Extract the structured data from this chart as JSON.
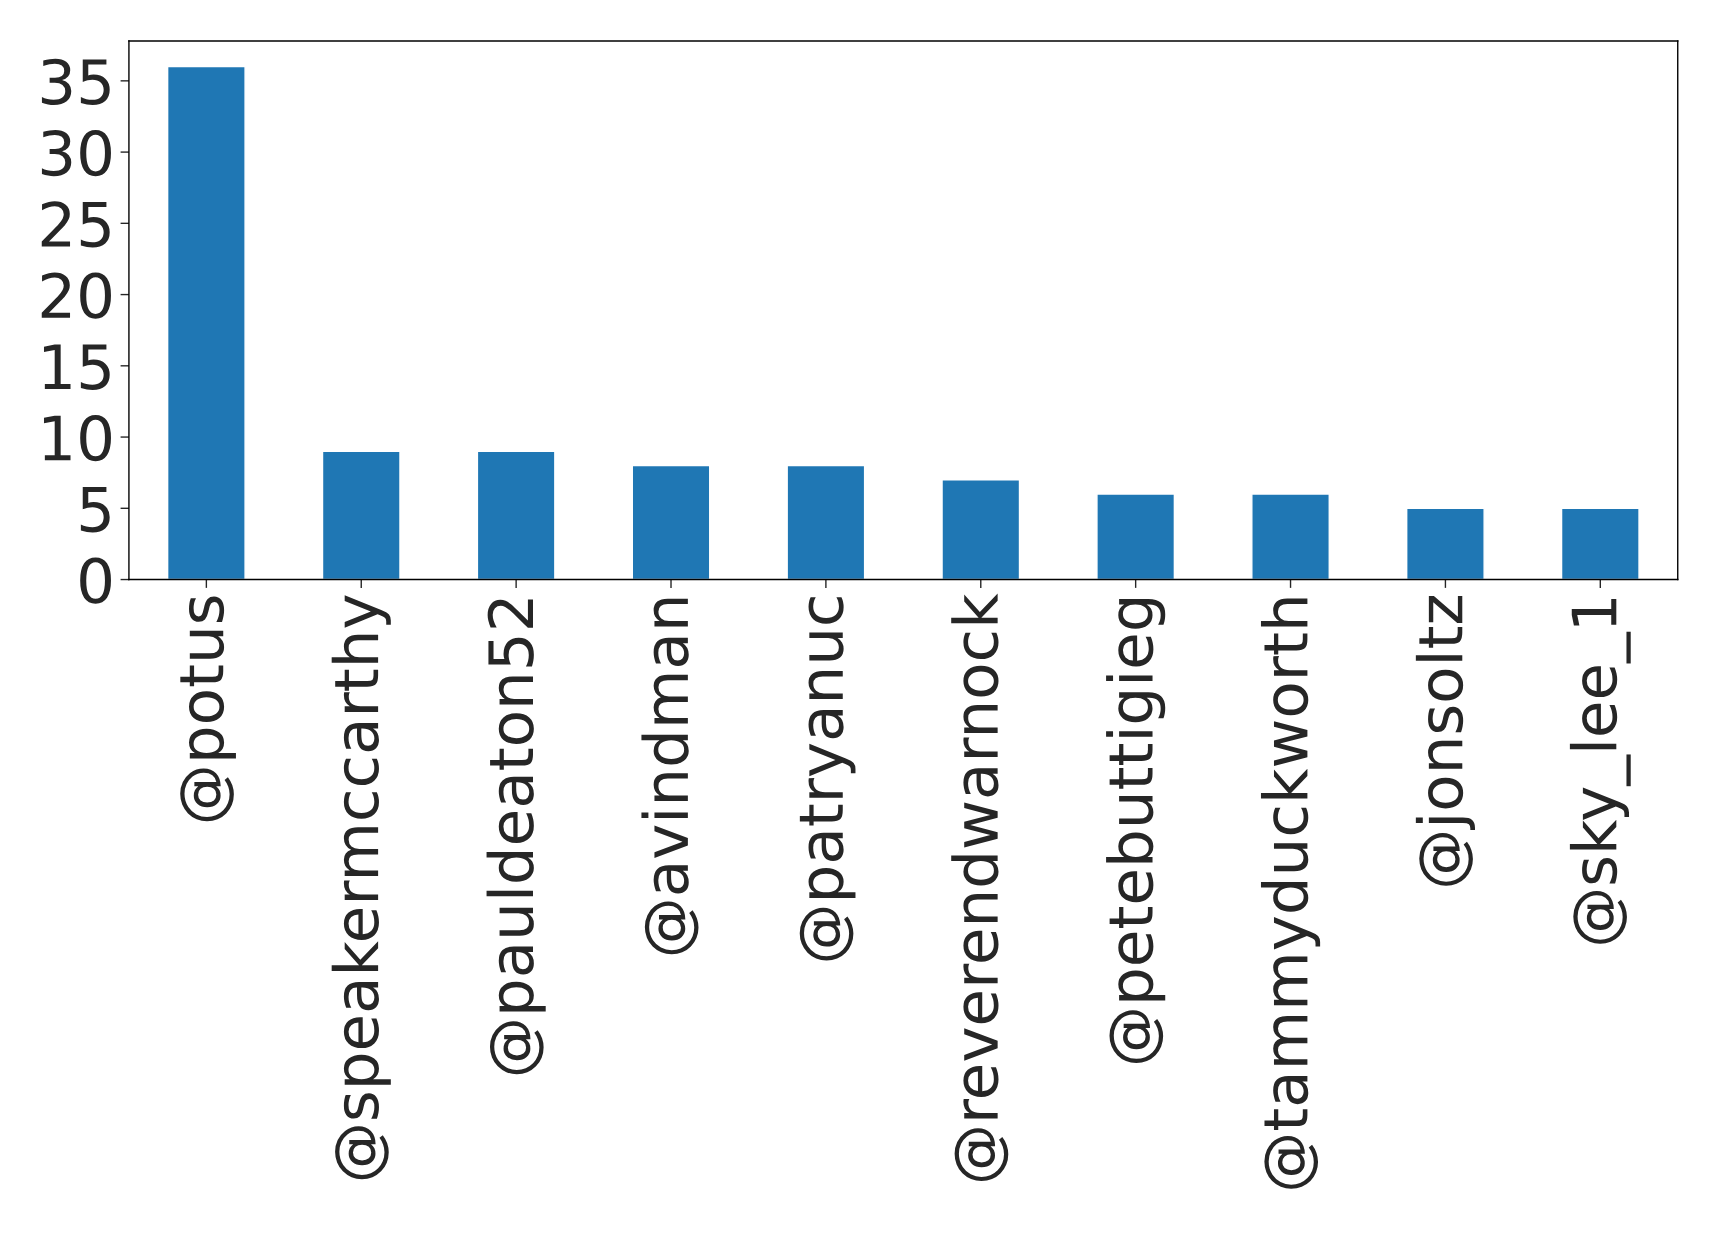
{
  "chart_data": {
    "type": "bar",
    "categories": [
      "@potus",
      "@speakermccarthy",
      "@pauldeaton52",
      "@avindman",
      "@patryanuc",
      "@reverendwarnock",
      "@petebuttigieg",
      "@tammyduckworth",
      "@jonsoltz",
      "@sky_lee_1"
    ],
    "values": [
      36,
      9,
      9,
      8,
      8,
      7,
      6,
      6,
      5,
      5
    ],
    "color": "#1f77b4",
    "ylim": [
      0,
      37.8
    ],
    "yticks": [
      0,
      5,
      10,
      15,
      20,
      25,
      30,
      35
    ],
    "grid": false,
    "legend": false
  }
}
